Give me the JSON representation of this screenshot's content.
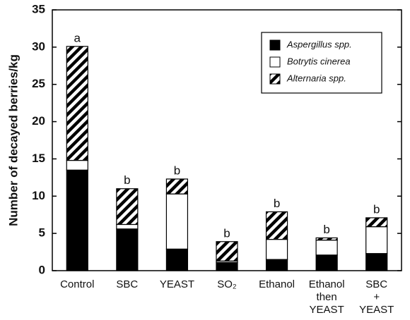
{
  "chart_data": {
    "type": "stacked_bar",
    "ylabel": "Number of decayed berries/kg",
    "categories": [
      [
        "Control"
      ],
      [
        "SBC"
      ],
      [
        "YEAST"
      ],
      [
        "SO₂"
      ],
      [
        "Ethanol"
      ],
      [
        "Ethanol",
        "then",
        "YEAST"
      ],
      [
        "SBC",
        "+",
        "YEAST"
      ]
    ],
    "series": [
      {
        "name": "Aspergillus spp.",
        "color": "#000000",
        "values": [
          13.5,
          5.6,
          2.9,
          1.1,
          1.5,
          2.1,
          2.3
        ]
      },
      {
        "name": "Botrytis cinerea",
        "color": "#ffffff",
        "values": [
          1.3,
          0.6,
          7.4,
          0.2,
          2.7,
          2.0,
          3.6
        ]
      },
      {
        "name": "Alternaria spp.",
        "color": "hatch",
        "values": [
          15.3,
          4.8,
          2.0,
          2.6,
          3.7,
          0.3,
          1.2
        ]
      }
    ],
    "annotations": [
      "a",
      "b",
      "b",
      "b",
      "b",
      "b",
      "b"
    ],
    "ylim": [
      0,
      35
    ],
    "yticks": [
      0,
      5,
      10,
      15,
      20,
      25,
      30,
      35
    ],
    "legend": "upper right",
    "grid": false
  }
}
